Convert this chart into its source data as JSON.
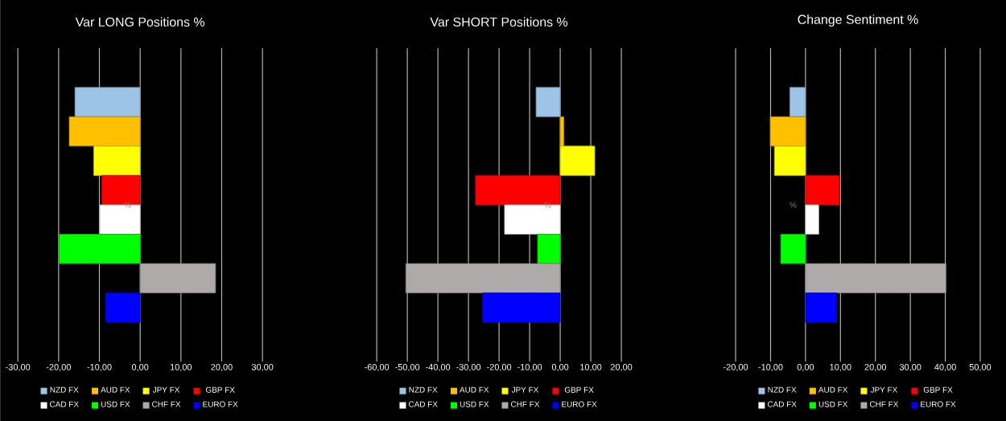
{
  "chart_data": [
    {
      "type": "bar",
      "orientation": "horizontal",
      "title": "Var LONG Positions %",
      "ylabel": "%",
      "categories": [
        null
      ],
      "series": [
        {
          "name": "NZD FX",
          "color": "#9dc3e6",
          "values": [
            -16
          ]
        },
        {
          "name": "AUD FX",
          "color": "#ffc000",
          "values": [
            -17.4
          ]
        },
        {
          "name": "JPY FX",
          "color": "#ffff00",
          "values": [
            -11.4
          ]
        },
        {
          "name": "GBP FX",
          "color": "#ff0000",
          "values": [
            -9.4
          ]
        },
        {
          "name": "CAD FX",
          "color": "#ffffff",
          "values": [
            -9.9
          ]
        },
        {
          "name": "USD FX",
          "color": "#00ff00",
          "values": [
            -19.9
          ]
        },
        {
          "name": "CHF FX",
          "color": "#aeaaaa",
          "values": [
            18.5
          ]
        },
        {
          "name": "EURO FX",
          "color": "#0000ff",
          "values": [
            -8.5
          ]
        }
      ],
      "xlim": [
        -30,
        30
      ],
      "xticks": [
        {
          "value": -30,
          "label": "-30,00"
        },
        {
          "value": -20,
          "label": "-20,00"
        },
        {
          "value": -10,
          "label": "-10,00"
        },
        {
          "value": 0,
          "label": "0,00"
        },
        {
          "value": 10,
          "label": "10,00"
        },
        {
          "value": 20,
          "label": "20,00"
        },
        {
          "value": 30,
          "label": "30,00"
        }
      ],
      "grid": "x",
      "legend": "bottom"
    },
    {
      "type": "bar",
      "orientation": "horizontal",
      "title": "Var SHORT Positions %",
      "ylabel": "%",
      "categories": [
        null
      ],
      "series": [
        {
          "name": "NZD FX",
          "color": "#9dc3e6",
          "values": [
            -7.9
          ]
        },
        {
          "name": "AUD FX",
          "color": "#ffc000",
          "values": [
            1.2
          ]
        },
        {
          "name": "JPY FX",
          "color": "#ffff00",
          "values": [
            11.3
          ]
        },
        {
          "name": "GBP FX",
          "color": "#ff0000",
          "values": [
            -27.7
          ]
        },
        {
          "name": "CAD FX",
          "color": "#ffffff",
          "values": [
            -18.2
          ]
        },
        {
          "name": "USD FX",
          "color": "#00ff00",
          "values": [
            -7.4
          ]
        },
        {
          "name": "CHF FX",
          "color": "#aeaaaa",
          "values": [
            -50.5
          ]
        },
        {
          "name": "EURO FX",
          "color": "#0000ff",
          "values": [
            -25.4
          ]
        }
      ],
      "xlim": [
        -60,
        20
      ],
      "xticks": [
        {
          "value": -60,
          "label": "-60,00"
        },
        {
          "value": -50,
          "label": "-50,00"
        },
        {
          "value": -40,
          "label": "-40,00"
        },
        {
          "value": -30,
          "label": "-30,00"
        },
        {
          "value": -20,
          "label": "-20,00"
        },
        {
          "value": -10,
          "label": "-10,00"
        },
        {
          "value": 0,
          "label": "0,00"
        },
        {
          "value": 10,
          "label": "10,00"
        },
        {
          "value": 20,
          "label": "20,00"
        }
      ],
      "grid": "x",
      "legend": "bottom"
    },
    {
      "type": "bar",
      "orientation": "horizontal",
      "title": "Change Sentiment %",
      "ylabel": "%",
      "categories": [
        null
      ],
      "series": [
        {
          "name": "NZD FX",
          "color": "#9dc3e6",
          "values": [
            -4.5
          ]
        },
        {
          "name": "AUD FX",
          "color": "#ffc000",
          "values": [
            -10.1
          ]
        },
        {
          "name": "JPY FX",
          "color": "#ffff00",
          "values": [
            -8.9
          ]
        },
        {
          "name": "GBP FX",
          "color": "#ff0000",
          "values": [
            9.7
          ]
        },
        {
          "name": "CAD FX",
          "color": "#ffffff",
          "values": [
            3.8
          ]
        },
        {
          "name": "USD FX",
          "color": "#00ff00",
          "values": [
            -7.1
          ]
        },
        {
          "name": "CHF FX",
          "color": "#aeaaaa",
          "values": [
            40.2
          ]
        },
        {
          "name": "EURO FX",
          "color": "#0000ff",
          "values": [
            8.9
          ]
        }
      ],
      "xlim": [
        -20,
        50
      ],
      "xticks": [
        {
          "value": -20,
          "label": "-20,00"
        },
        {
          "value": -10,
          "label": "-10,00"
        },
        {
          "value": 0,
          "label": "0,00"
        },
        {
          "value": 10,
          "label": "10,00"
        },
        {
          "value": 20,
          "label": "20,00"
        },
        {
          "value": 30,
          "label": "30,00"
        },
        {
          "value": 40,
          "label": "40,00"
        },
        {
          "value": 50,
          "label": "50,00"
        }
      ],
      "grid": "x",
      "legend": "bottom"
    }
  ]
}
